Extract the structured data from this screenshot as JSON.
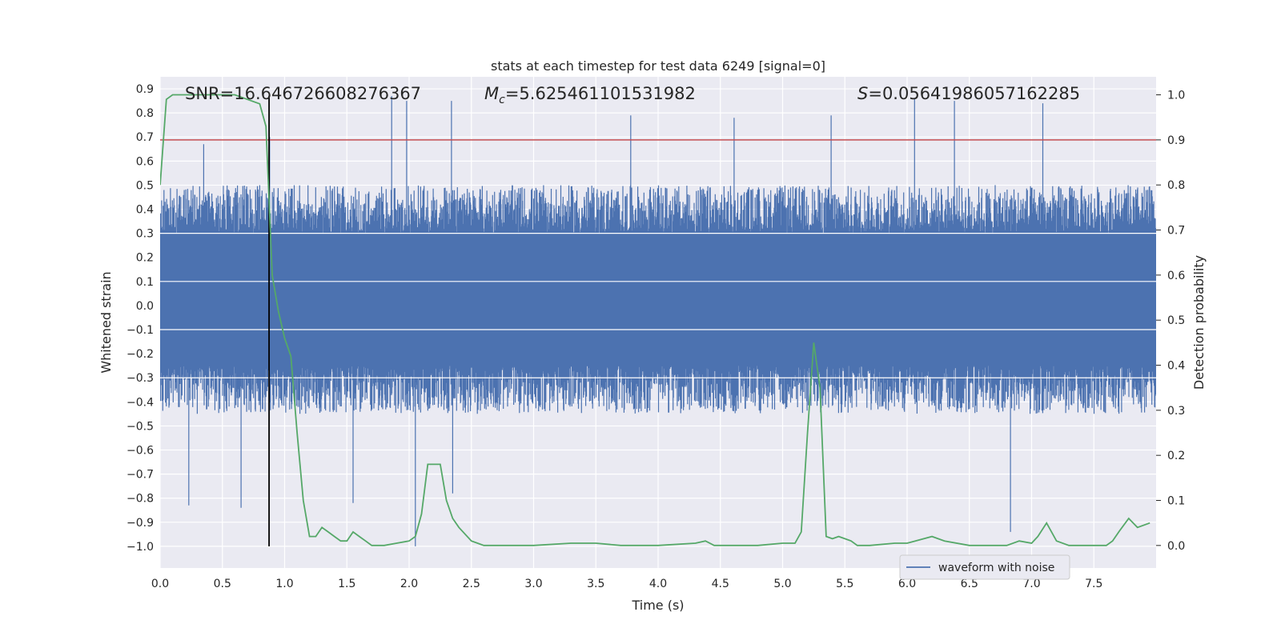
{
  "chart_data": {
    "type": "line",
    "title": "stats at each timestep for test data 6249 [signal=0]",
    "xlabel": "Time (s)",
    "ylabel_left": "Whitened strain",
    "ylabel_right": "Detection probability",
    "xlim": [
      0.0,
      8.0
    ],
    "ylim_left": [
      -1.09,
      0.95
    ],
    "ylim_right": [
      -0.05,
      1.04
    ],
    "x_ticks": [
      "0.0",
      "0.5",
      "1.0",
      "1.5",
      "2.0",
      "2.5",
      "3.0",
      "3.5",
      "4.0",
      "4.5",
      "5.0",
      "5.5",
      "6.0",
      "6.5",
      "7.0",
      "7.5"
    ],
    "y_ticks_left": [
      "0.9",
      "0.8",
      "0.7",
      "0.6",
      "0.5",
      "0.4",
      "0.3",
      "0.2",
      "0.1",
      "0.0",
      "−0.1",
      "−0.2",
      "−0.3",
      "−0.4",
      "−0.5",
      "−0.6",
      "−0.7",
      "−0.8",
      "−0.9",
      "−1.0"
    ],
    "y_ticks_right": [
      "1.0",
      "0.9",
      "0.8",
      "0.7",
      "0.6",
      "0.5",
      "0.4",
      "0.3",
      "0.2",
      "0.1",
      "0.0"
    ],
    "grid": true,
    "legend_position": "lower-right",
    "annotations": {
      "snr": "SNR=16.646726608276367",
      "mc_symbol": "M",
      "mc_sub": "c",
      "mc_value": "=5.625461101531982",
      "s_symbol": "S",
      "s_value": "=0.05641986057162285"
    },
    "threshold": {
      "axis": "right",
      "value": 0.9,
      "color": "#c44e52"
    },
    "marker_line": {
      "x": 0.875,
      "y_left_range": [
        -1.0,
        0.87
      ],
      "color": "#000000"
    },
    "series": [
      {
        "name": "waveform with noise",
        "axis": "left",
        "color": "#4c72b0",
        "kind": "noise",
        "envelope_typical": [
          -0.45,
          0.5
        ],
        "spikes": [
          {
            "x": 0.23,
            "y": -0.83
          },
          {
            "x": 0.65,
            "y": -0.84
          },
          {
            "x": 1.55,
            "y": -0.82
          },
          {
            "x": 2.05,
            "y": -1.0
          },
          {
            "x": 2.35,
            "y": -0.78
          },
          {
            "x": 6.83,
            "y": -0.94
          },
          {
            "x": 1.86,
            "y": 0.87
          },
          {
            "x": 1.98,
            "y": 0.85
          },
          {
            "x": 2.34,
            "y": 0.85
          },
          {
            "x": 3.78,
            "y": 0.79
          },
          {
            "x": 4.61,
            "y": 0.78
          },
          {
            "x": 5.39,
            "y": 0.79
          },
          {
            "x": 6.06,
            "y": 0.86
          },
          {
            "x": 6.38,
            "y": 0.85
          },
          {
            "x": 7.09,
            "y": 0.84
          },
          {
            "x": 0.35,
            "y": 0.67
          },
          {
            "x": 0.88,
            "y": 0.7
          }
        ]
      },
      {
        "name": "detection probability",
        "axis": "right",
        "color": "#55a868",
        "x": [
          0.0,
          0.05,
          0.1,
          0.2,
          0.3,
          0.4,
          0.5,
          0.6,
          0.7,
          0.8,
          0.85,
          0.9,
          0.95,
          1.0,
          1.05,
          1.1,
          1.15,
          1.2,
          1.25,
          1.3,
          1.35,
          1.4,
          1.45,
          1.5,
          1.55,
          1.6,
          1.65,
          1.7,
          1.8,
          1.9,
          2.0,
          2.05,
          2.1,
          2.15,
          2.2,
          2.25,
          2.3,
          2.35,
          2.4,
          2.5,
          2.55,
          2.6,
          2.7,
          2.8,
          3.0,
          3.3,
          3.5,
          3.7,
          4.0,
          4.3,
          4.38,
          4.45,
          4.6,
          4.8,
          5.0,
          5.1,
          5.15,
          5.2,
          5.25,
          5.3,
          5.35,
          5.4,
          5.45,
          5.5,
          5.55,
          5.6,
          5.7,
          5.9,
          6.0,
          6.2,
          6.3,
          6.5,
          6.8,
          6.9,
          7.0,
          7.05,
          7.12,
          7.2,
          7.3,
          7.5,
          7.6,
          7.65,
          7.7,
          7.78,
          7.85,
          7.95
        ],
        "y": [
          0.8,
          0.99,
          1.0,
          1.0,
          1.0,
          1.0,
          1.0,
          1.0,
          0.99,
          0.98,
          0.93,
          0.6,
          0.52,
          0.46,
          0.42,
          0.25,
          0.1,
          0.02,
          0.02,
          0.04,
          0.03,
          0.02,
          0.01,
          0.01,
          0.03,
          0.02,
          0.01,
          0.0,
          0.0,
          0.005,
          0.01,
          0.02,
          0.07,
          0.18,
          0.18,
          0.18,
          0.1,
          0.06,
          0.04,
          0.01,
          0.005,
          0.0,
          0.0,
          0.0,
          0.0,
          0.005,
          0.005,
          0.0,
          0.0,
          0.005,
          0.01,
          0.0,
          0.0,
          0.0,
          0.005,
          0.005,
          0.03,
          0.25,
          0.45,
          0.35,
          0.02,
          0.015,
          0.02,
          0.015,
          0.01,
          0.0,
          0.0,
          0.005,
          0.005,
          0.02,
          0.01,
          0.0,
          0.0,
          0.01,
          0.005,
          0.02,
          0.05,
          0.01,
          0.0,
          0.0,
          0.0,
          0.01,
          0.03,
          0.06,
          0.04,
          0.05
        ]
      }
    ]
  }
}
